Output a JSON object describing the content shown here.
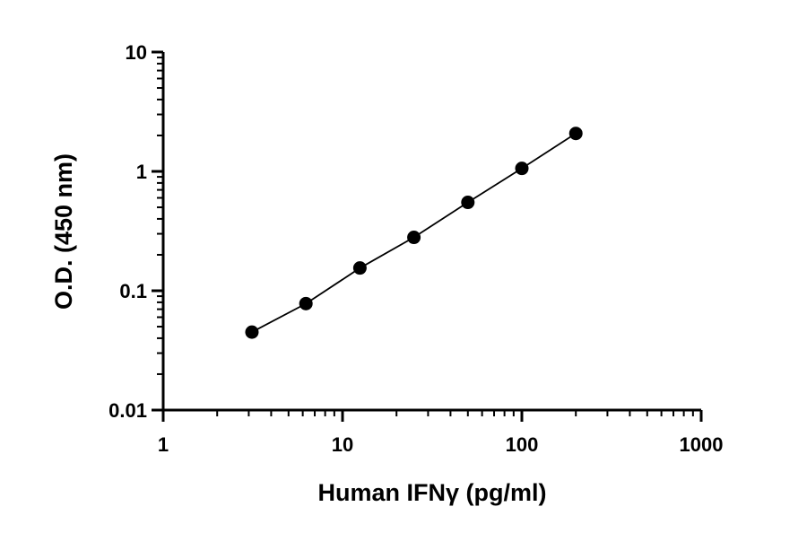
{
  "chart_data": {
    "type": "scatter",
    "title": "",
    "xlabel": "Human IFNγ (pg/ml)",
    "ylabel": "O.D. (450 nm)",
    "x_scale": "log",
    "y_scale": "log",
    "xlim": [
      1,
      1000
    ],
    "ylim": [
      0.01,
      10
    ],
    "x_ticks": [
      1,
      10,
      100,
      1000
    ],
    "x_tick_labels": [
      "1",
      "10",
      "100",
      "1000"
    ],
    "y_ticks": [
      0.01,
      0.1,
      1,
      10
    ],
    "y_tick_labels": [
      "0.01",
      "0.1",
      "1",
      "10"
    ],
    "grid": false,
    "legend": "none",
    "fit_line": true,
    "series": [
      {
        "x": [
          3.125,
          6.25,
          12.5,
          25,
          50,
          100,
          200
        ],
        "y": [
          0.045,
          0.078,
          0.155,
          0.28,
          0.55,
          1.06,
          2.08
        ]
      }
    ],
    "colors": {
      "marker": "#000000",
      "line": "#000000"
    }
  }
}
